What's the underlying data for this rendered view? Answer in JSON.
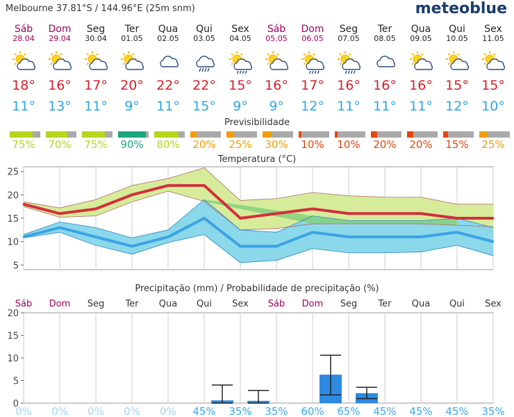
{
  "header": {
    "location": "Melbourne  37.81°S / 144.96°E (25m snm)",
    "logo": "meteoblue"
  },
  "days": [
    {
      "name": "Sáb",
      "date": "28.04",
      "weekend": true,
      "icon": "sun-cloud-icon",
      "tmax": "18°",
      "tmin": "11°",
      "predictability": 75,
      "predictability_label": "75%",
      "pred_color": "#b4d61c"
    },
    {
      "name": "Dom",
      "date": "29.04",
      "weekend": true,
      "icon": "sun-cloud-icon",
      "tmax": "16°",
      "tmin": "13°",
      "predictability": 70,
      "predictability_label": "70%",
      "pred_color": "#b4d61c"
    },
    {
      "name": "Seg",
      "date": "30.04",
      "weekend": false,
      "icon": "sun-cloud-icon",
      "tmax": "17°",
      "tmin": "11°",
      "predictability": 75,
      "predictability_label": "75%",
      "pred_color": "#b4d61c"
    },
    {
      "name": "Ter",
      "date": "01.05",
      "weekend": false,
      "icon": "sun-cloud-icon",
      "tmax": "20°",
      "tmin": "9°",
      "predictability": 90,
      "predictability_label": "90%",
      "pred_color": "#1aa67c"
    },
    {
      "name": "Qua",
      "date": "02.05",
      "weekend": false,
      "icon": "cloud-icon",
      "tmax": "22°",
      "tmin": "11°",
      "predictability": 80,
      "predictability_label": "80%",
      "pred_color": "#b4d61c"
    },
    {
      "name": "Qui",
      "date": "03.05",
      "weekend": false,
      "icon": "cloud-rain-icon",
      "tmax": "22°",
      "tmin": "15°",
      "predictability": 20,
      "predictability_label": "20%",
      "pred_color": "#f29e00"
    },
    {
      "name": "Sex",
      "date": "04.05",
      "weekend": false,
      "icon": "sun-cloud-rain-icon",
      "tmax": "15°",
      "tmin": "9°",
      "predictability": 25,
      "predictability_label": "25%",
      "pred_color": "#f29e00"
    },
    {
      "name": "Sáb",
      "date": "05.05",
      "weekend": true,
      "icon": "sun-cloud-icon",
      "tmax": "16°",
      "tmin": "9°",
      "predictability": 30,
      "predictability_label": "30%",
      "pred_color": "#f29e00"
    },
    {
      "name": "Dom",
      "date": "06.05",
      "weekend": true,
      "icon": "sun-cloud-rain-icon",
      "tmax": "17°",
      "tmin": "12°",
      "predictability": 10,
      "predictability_label": "10%",
      "pred_color": "#e8450a"
    },
    {
      "name": "Seg",
      "date": "07.05",
      "weekend": false,
      "icon": "sun-cloud-rain-icon",
      "tmax": "16°",
      "tmin": "11°",
      "predictability": 10,
      "predictability_label": "10%",
      "pred_color": "#e8450a"
    },
    {
      "name": "Ter",
      "date": "08.05",
      "weekend": false,
      "icon": "cloud-icon",
      "tmax": "16°",
      "tmin": "11°",
      "predictability": 20,
      "predictability_label": "20%",
      "pred_color": "#e8450a"
    },
    {
      "name": "Qua",
      "date": "09.05",
      "weekend": false,
      "icon": "sun-cloud-icon",
      "tmax": "16°",
      "tmin": "11°",
      "predictability": 20,
      "predictability_label": "20%",
      "pred_color": "#e8450a"
    },
    {
      "name": "Qui",
      "date": "10.05",
      "weekend": false,
      "icon": "sun-cloud-icon",
      "tmax": "15°",
      "tmin": "12°",
      "predictability": 15,
      "predictability_label": "15%",
      "pred_color": "#e8450a"
    },
    {
      "name": "Sex",
      "date": "11.05",
      "weekend": false,
      "icon": "sun-cloud-icon",
      "tmax": "15°",
      "tmin": "10°",
      "predictability": 25,
      "predictability_label": "25%",
      "pred_color": "#f29e00"
    }
  ],
  "colors": {
    "max_line": "#d32f3c",
    "max_band": "#d6ec9a",
    "min_line": "#3ba3e4",
    "min_band": "#8ad8ea",
    "overlap_band": "#86d07e",
    "precip_bar": "#2d8ae0",
    "prob_text": "#3ba8e6",
    "prob_text_zero": "#9fd4f2",
    "weekend_text": "#a0005a"
  },
  "predictability_title": "Previsibilidade",
  "chart_data": [
    {
      "type": "line",
      "title": "Temperatura (°C)",
      "ylim": [
        4,
        26
      ],
      "yticks": [
        "5",
        "10",
        "15",
        "20",
        "25"
      ],
      "yticks_values": [
        5,
        10,
        15,
        20,
        25
      ],
      "x": [
        0,
        1,
        2,
        3,
        4,
        5,
        6,
        7,
        8,
        9,
        10,
        11,
        12,
        13
      ],
      "series": [
        {
          "role": "max",
          "values": [
            18,
            16,
            17,
            20,
            22,
            22,
            15,
            16,
            17,
            16,
            16,
            16,
            15,
            15
          ],
          "low": [
            17.5,
            15.2,
            15.5,
            18.5,
            20.8,
            18.6,
            12.5,
            12.8,
            13.8,
            13.8,
            13.8,
            13.8,
            13.5,
            13.2
          ],
          "high": [
            18.5,
            17.2,
            19,
            22,
            23.5,
            25.8,
            18.8,
            19.2,
            20.5,
            19.8,
            19.5,
            19.5,
            18,
            18
          ]
        },
        {
          "role": "min",
          "values": [
            11,
            13,
            11,
            9,
            11,
            15,
            9,
            9,
            12,
            11,
            11,
            11,
            12,
            10
          ],
          "low": [
            10.8,
            12,
            9.2,
            7.3,
            9.8,
            11.5,
            5.5,
            6,
            8.5,
            7.6,
            7.6,
            7.8,
            9.2,
            7
          ],
          "high": [
            11.5,
            14.2,
            13,
            10.8,
            12.5,
            19,
            12.5,
            12,
            15.5,
            14.5,
            14.5,
            14.5,
            15,
            13
          ]
        }
      ]
    },
    {
      "type": "bar",
      "title": "Precipitação (mm) / Probabilidade de precipitação (%)",
      "ylim": [
        0,
        20
      ],
      "yticks": [
        "0",
        "5",
        "10",
        "15",
        "20"
      ],
      "yticks_values": [
        0,
        5,
        10,
        15,
        20
      ],
      "categories": [
        "Sáb",
        "Dom",
        "Seg",
        "Ter",
        "Qua",
        "Qui",
        "Sex",
        "Sáb",
        "Dom",
        "Seg",
        "Ter",
        "Qua",
        "Qui",
        "Sex"
      ],
      "weekend": [
        true,
        true,
        false,
        false,
        false,
        false,
        false,
        true,
        true,
        false,
        false,
        false,
        false,
        false
      ],
      "values": [
        0,
        0,
        0,
        0,
        0,
        0.6,
        0.5,
        0,
        6.3,
        2.2,
        0,
        0,
        0,
        0
      ],
      "err_low": [
        null,
        null,
        null,
        null,
        null,
        0,
        0,
        null,
        1.8,
        1,
        null,
        null,
        null,
        null
      ],
      "err_high": [
        null,
        null,
        null,
        null,
        null,
        4,
        2.8,
        null,
        10.6,
        3.5,
        null,
        null,
        null,
        null
      ],
      "probability": [
        "0%",
        "0%",
        "0%",
        "0%",
        "0%",
        "45%",
        "35%",
        "35%",
        "60%",
        "65%",
        "45%",
        "45%",
        "45%",
        "35%"
      ],
      "probability_values": [
        0,
        0,
        0,
        0,
        0,
        45,
        35,
        35,
        60,
        65,
        45,
        45,
        45,
        35
      ]
    }
  ]
}
